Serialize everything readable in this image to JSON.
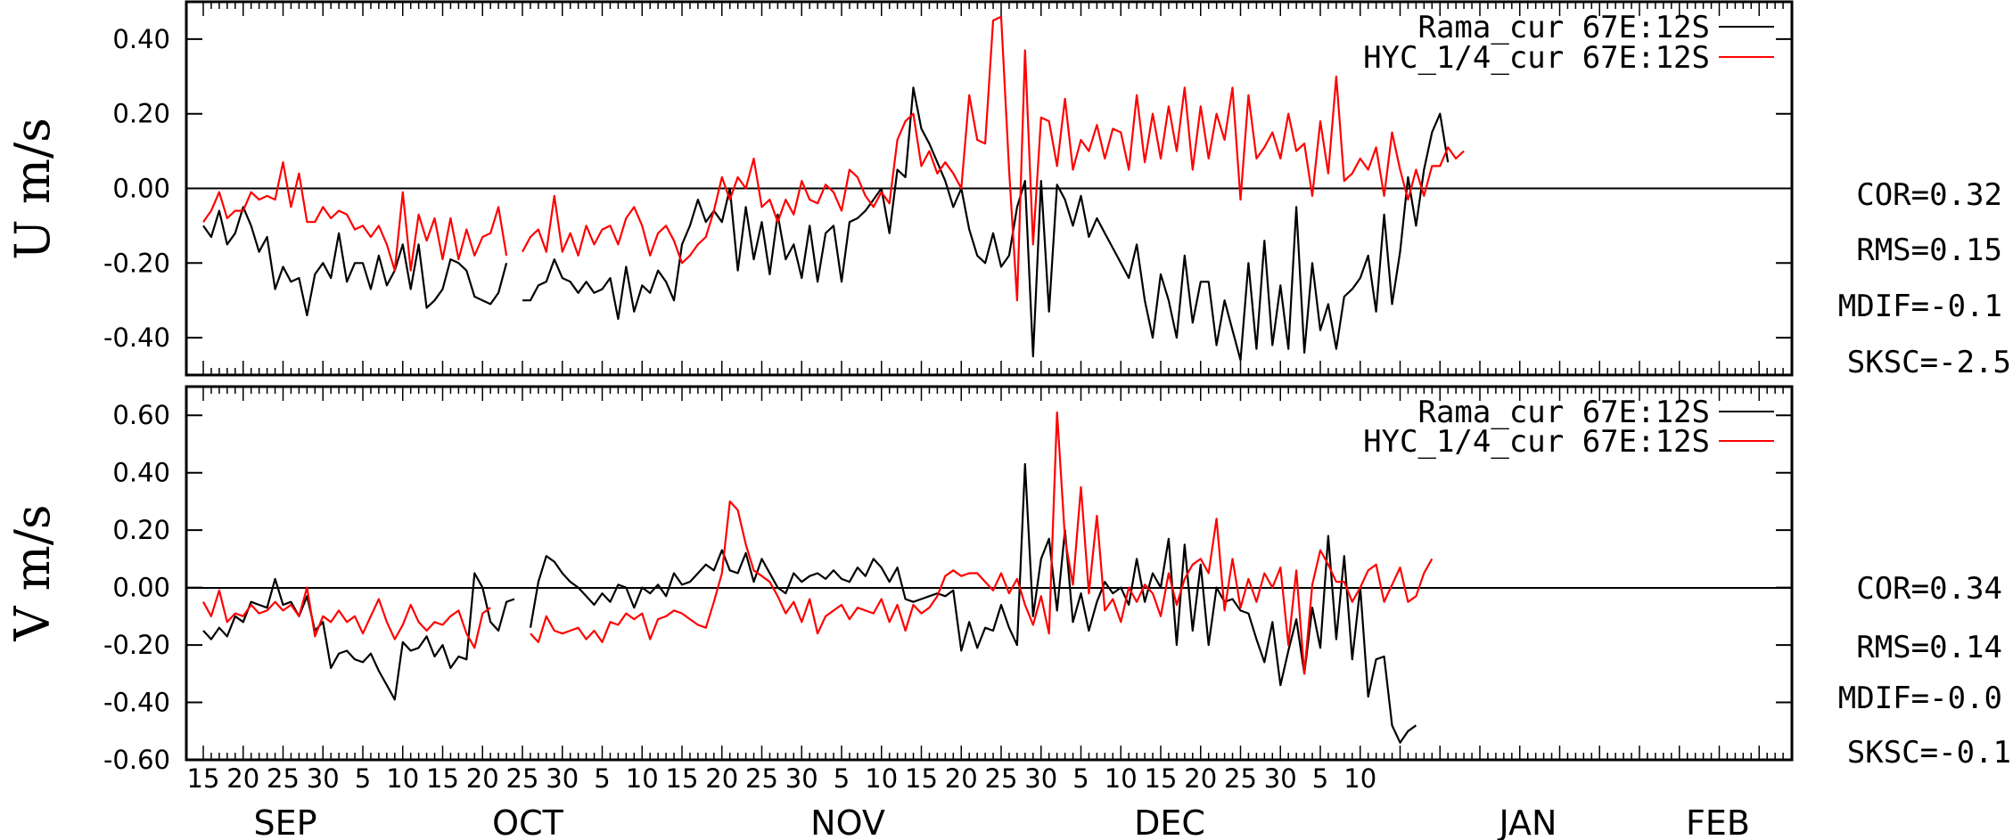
{
  "chart_data": [
    {
      "type": "line",
      "ylabel": "U m/s",
      "ylim": [
        -0.5,
        0.5
      ],
      "yticks": [
        0.4,
        0.2,
        0.0,
        -0.2,
        -0.4
      ],
      "ytick_labels": [
        "0.40",
        "0.20",
        "0.00",
        "-0.20",
        "-0.40"
      ],
      "zero_line": true,
      "legend_position": "top-right",
      "series": [
        {
          "name": "Rama_cur 67E:12S",
          "color": "#000000",
          "values": [
            -0.1,
            -0.13,
            -0.06,
            -0.15,
            -0.12,
            -0.05,
            -0.1,
            -0.17,
            -0.13,
            -0.27,
            -0.21,
            -0.25,
            -0.24,
            -0.34,
            -0.23,
            -0.2,
            -0.24,
            -0.12,
            -0.25,
            -0.2,
            -0.2,
            -0.27,
            -0.18,
            -0.26,
            -0.22,
            -0.15,
            -0.27,
            -0.15,
            -0.32,
            -0.3,
            -0.27,
            -0.19,
            -0.2,
            -0.22,
            -0.29,
            -0.3,
            -0.31,
            -0.28,
            -0.2,
            null,
            -0.3,
            -0.3,
            -0.26,
            -0.25,
            -0.19,
            -0.24,
            -0.25,
            -0.28,
            -0.25,
            -0.28,
            -0.27,
            -0.24,
            -0.35,
            -0.21,
            -0.33,
            -0.26,
            -0.28,
            -0.22,
            -0.25,
            -0.3,
            -0.15,
            -0.1,
            -0.03,
            -0.09,
            -0.06,
            -0.09,
            0.0,
            -0.22,
            -0.05,
            -0.19,
            -0.09,
            -0.23,
            -0.07,
            -0.19,
            -0.15,
            -0.24,
            -0.1,
            -0.25,
            -0.12,
            -0.1,
            -0.25,
            -0.09,
            -0.08,
            -0.06,
            -0.03,
            0.0,
            -0.12,
            0.05,
            0.03,
            0.27,
            0.16,
            0.12,
            0.07,
            0.02,
            -0.05,
            0.0,
            -0.11,
            -0.18,
            -0.2,
            -0.12,
            -0.21,
            -0.18,
            -0.05,
            0.02,
            -0.45,
            0.02,
            -0.33,
            0.01,
            -0.03,
            -0.1,
            -0.02,
            -0.13,
            -0.08,
            -0.12,
            -0.16,
            -0.2,
            -0.24,
            -0.15,
            -0.3,
            -0.4,
            -0.23,
            -0.3,
            -0.4,
            -0.18,
            -0.36,
            -0.25,
            -0.25,
            -0.42,
            -0.3,
            -0.38,
            -0.46,
            -0.2,
            -0.43,
            -0.14,
            -0.42,
            -0.26,
            -0.43,
            -0.05,
            -0.44,
            -0.2,
            -0.38,
            -0.31,
            -0.43,
            -0.29,
            -0.27,
            -0.24,
            -0.18,
            -0.33,
            -0.07,
            -0.31,
            -0.17,
            0.03,
            -0.1,
            0.05,
            0.15,
            0.2,
            0.07
          ]
        },
        {
          "name": "HYC_1/4_cur 67E:12S",
          "color": "#ff0000",
          "values": [
            -0.09,
            -0.06,
            -0.01,
            -0.08,
            -0.06,
            -0.06,
            -0.01,
            -0.03,
            -0.02,
            -0.03,
            0.07,
            -0.05,
            0.04,
            -0.09,
            -0.09,
            -0.05,
            -0.08,
            -0.06,
            -0.07,
            -0.11,
            -0.1,
            -0.13,
            -0.1,
            -0.15,
            -0.22,
            -0.01,
            -0.22,
            -0.07,
            -0.14,
            -0.08,
            -0.19,
            -0.08,
            -0.19,
            -0.11,
            -0.18,
            -0.13,
            -0.12,
            -0.05,
            -0.18,
            null,
            -0.17,
            -0.13,
            -0.11,
            -0.17,
            -0.02,
            -0.17,
            -0.12,
            -0.18,
            -0.1,
            -0.15,
            -0.11,
            -0.1,
            -0.15,
            -0.08,
            -0.05,
            -0.1,
            -0.18,
            -0.12,
            -0.1,
            -0.14,
            -0.2,
            -0.18,
            -0.15,
            -0.13,
            -0.06,
            0.03,
            -0.03,
            0.03,
            0.0,
            0.08,
            -0.05,
            -0.03,
            -0.09,
            -0.03,
            -0.07,
            0.02,
            -0.03,
            -0.04,
            0.01,
            -0.01,
            -0.06,
            0.05,
            0.03,
            -0.02,
            -0.05,
            -0.01,
            -0.04,
            0.13,
            0.18,
            0.2,
            0.06,
            0.1,
            0.04,
            0.07,
            0.04,
            0.0,
            0.25,
            0.13,
            0.12,
            0.45,
            0.46,
            0.05,
            -0.3,
            0.37,
            -0.15,
            0.19,
            0.18,
            0.06,
            0.24,
            0.05,
            0.13,
            0.1,
            0.17,
            0.08,
            0.16,
            0.15,
            0.05,
            0.25,
            0.07,
            0.2,
            0.08,
            0.22,
            0.1,
            0.27,
            0.05,
            0.22,
            0.08,
            0.2,
            0.13,
            0.27,
            -0.03,
            0.25,
            0.08,
            0.11,
            0.15,
            0.08,
            0.2,
            0.1,
            0.12,
            -0.02,
            0.18,
            0.04,
            0.3,
            0.02,
            0.04,
            0.08,
            0.05,
            0.11,
            -0.02,
            0.15,
            0.05,
            -0.03,
            0.05,
            -0.02,
            0.06,
            0.06,
            0.11,
            0.08,
            0.1
          ]
        }
      ],
      "stats": {
        "cor": "COR=0.32",
        "rms": "RMS=0.15",
        "mdif": "MDIF=-0.1",
        "sksc": "SKSC=-2.5"
      }
    },
    {
      "type": "line",
      "ylabel": "V m/s",
      "ylim": [
        -0.6,
        0.7
      ],
      "yticks": [
        0.6,
        0.4,
        0.2,
        0.0,
        -0.2,
        -0.4,
        -0.6
      ],
      "ytick_labels": [
        "0.60",
        "0.40",
        "0.20",
        "0.00",
        "-0.20",
        "-0.40",
        "-0.60"
      ],
      "zero_line": true,
      "legend_position": "top-right",
      "series": [
        {
          "name": "Rama_cur 67E:12S",
          "color": "#000000",
          "values": [
            -0.15,
            -0.18,
            -0.14,
            -0.17,
            -0.1,
            -0.12,
            -0.05,
            -0.06,
            -0.07,
            0.03,
            -0.06,
            -0.05,
            -0.1,
            -0.03,
            -0.15,
            -0.12,
            -0.28,
            -0.23,
            -0.22,
            -0.25,
            -0.26,
            -0.23,
            -0.29,
            -0.34,
            -0.39,
            -0.19,
            -0.22,
            -0.21,
            -0.17,
            -0.24,
            -0.2,
            -0.28,
            -0.24,
            -0.25,
            0.05,
            0.0,
            -0.12,
            -0.15,
            -0.05,
            -0.04,
            null,
            -0.14,
            0.02,
            0.11,
            0.09,
            0.05,
            0.02,
            0.0,
            -0.03,
            -0.06,
            -0.02,
            -0.05,
            0.01,
            0.0,
            -0.07,
            0.0,
            -0.02,
            0.01,
            -0.03,
            0.05,
            0.01,
            0.02,
            0.05,
            0.08,
            0.06,
            0.13,
            0.06,
            0.05,
            0.12,
            0.02,
            0.1,
            0.05,
            0.0,
            -0.02,
            0.05,
            0.02,
            0.04,
            0.05,
            0.03,
            0.06,
            0.03,
            0.02,
            0.07,
            0.04,
            0.1,
            0.07,
            0.02,
            0.07,
            -0.04,
            -0.05,
            -0.04,
            -0.03,
            -0.02,
            -0.03,
            -0.01,
            -0.22,
            -0.12,
            -0.21,
            -0.14,
            -0.15,
            -0.06,
            -0.14,
            -0.2,
            0.43,
            -0.1,
            0.1,
            0.17,
            -0.08,
            0.2,
            -0.12,
            -0.02,
            -0.15,
            -0.05,
            0.02,
            -0.02,
            0.0,
            -0.06,
            0.1,
            -0.05,
            0.05,
            0.0,
            0.17,
            -0.2,
            0.15,
            -0.15,
            0.08,
            -0.2,
            0.0,
            -0.05,
            -0.04,
            -0.08,
            -0.09,
            -0.18,
            -0.26,
            -0.12,
            -0.34,
            -0.22,
            -0.11,
            -0.3,
            -0.07,
            -0.21,
            0.18,
            -0.18,
            0.11,
            -0.25,
            0.0,
            -0.38,
            -0.25,
            -0.24,
            -0.48,
            -0.54,
            -0.5,
            -0.48
          ]
        },
        {
          "name": "HYC_1/4_cur 67E:12S",
          "color": "#ff0000",
          "values": [
            -0.05,
            -0.1,
            -0.01,
            -0.12,
            -0.09,
            -0.1,
            -0.06,
            -0.09,
            -0.08,
            -0.05,
            -0.08,
            -0.06,
            -0.1,
            0.0,
            -0.17,
            -0.1,
            -0.12,
            -0.08,
            -0.12,
            -0.1,
            -0.16,
            -0.1,
            -0.04,
            -0.12,
            -0.18,
            -0.13,
            -0.06,
            -0.12,
            -0.15,
            -0.12,
            -0.13,
            -0.1,
            -0.08,
            -0.16,
            -0.21,
            -0.09,
            -0.07,
            null,
            null,
            null,
            null,
            -0.16,
            -0.19,
            -0.1,
            -0.15,
            -0.16,
            -0.15,
            -0.14,
            -0.18,
            -0.15,
            -0.19,
            -0.12,
            -0.13,
            -0.09,
            -0.11,
            -0.09,
            -0.18,
            -0.11,
            -0.1,
            -0.08,
            -0.09,
            -0.11,
            -0.13,
            -0.14,
            -0.05,
            0.05,
            0.3,
            0.27,
            0.15,
            0.06,
            0.04,
            0.02,
            -0.03,
            -0.09,
            -0.05,
            -0.12,
            -0.04,
            -0.16,
            -0.1,
            -0.08,
            -0.06,
            -0.11,
            -0.07,
            -0.08,
            -0.09,
            -0.04,
            -0.12,
            -0.06,
            -0.15,
            -0.06,
            -0.09,
            -0.07,
            -0.03,
            0.04,
            0.06,
            0.04,
            0.05,
            0.05,
            0.02,
            -0.01,
            0.05,
            -0.02,
            0.03,
            -0.06,
            -0.13,
            -0.03,
            -0.16,
            0.61,
            0.17,
            0.01,
            0.35,
            -0.02,
            0.25,
            -0.08,
            -0.04,
            -0.12,
            0.0,
            -0.05,
            0.01,
            -0.02,
            -0.1,
            0.05,
            -0.06,
            0.03,
            0.08,
            0.1,
            0.05,
            0.24,
            -0.08,
            0.1,
            -0.07,
            0.03,
            -0.05,
            0.05,
            0.0,
            0.07,
            -0.2,
            0.06,
            -0.3,
            0.01,
            0.13,
            0.08,
            0.02,
            0.02,
            -0.05,
            0.0,
            0.06,
            0.08,
            -0.05,
            0.01,
            0.07,
            -0.05,
            -0.03,
            0.05,
            0.1
          ]
        }
      ],
      "stats": {
        "cor": "COR=0.34",
        "rms": "RMS=0.14",
        "mdif": "MDIF=-0.0",
        "sksc": "SKSC=-0.1"
      }
    }
  ],
  "x_axis": {
    "day_ticks": [
      "15",
      "20",
      "25",
      "30",
      "5",
      "10",
      "15",
      "20",
      "25",
      "30",
      "5",
      "10",
      "15",
      "20",
      "25",
      "30",
      "5",
      "10",
      "15",
      "20",
      "25",
      "30",
      "5",
      "10",
      "15",
      "20",
      "25",
      "30",
      "5",
      "10"
    ],
    "months": [
      "SEP",
      "OCT",
      "NOV",
      "DEC",
      "JAN",
      "FEB"
    ]
  }
}
